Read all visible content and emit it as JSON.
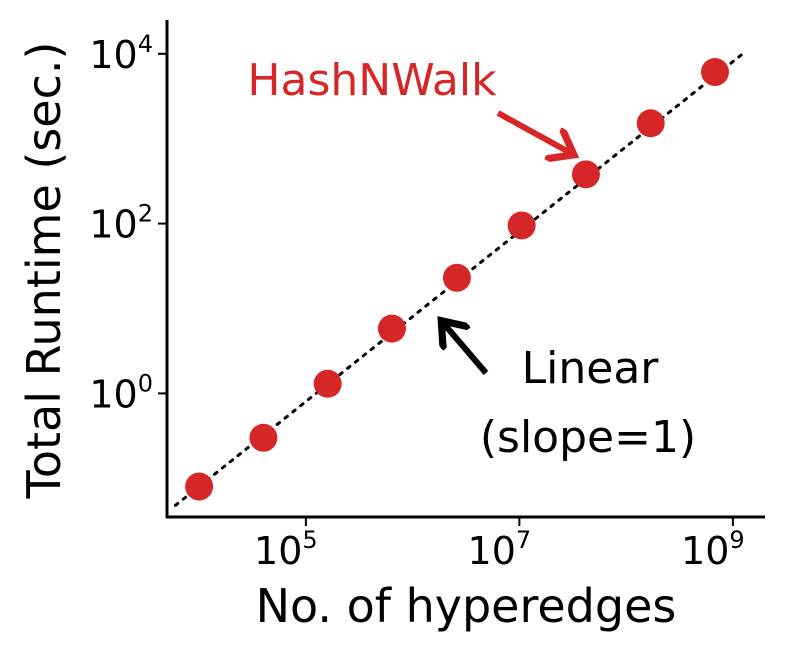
{
  "chart_data": {
    "type": "scatter",
    "title": "",
    "xlabel": "No. of hyperedges",
    "ylabel": "Total Runtime (sec.)",
    "xscale": "log",
    "yscale": "log",
    "xlim": [
      5000,
      2000000000
    ],
    "ylim": [
      0.035,
      25000
    ],
    "x_ticks": [
      {
        "value": 100000,
        "base": "10",
        "exp": "5"
      },
      {
        "value": 10000000,
        "base": "10",
        "exp": "7"
      },
      {
        "value": 1000000000,
        "base": "10",
        "exp": "9"
      }
    ],
    "y_ticks": [
      {
        "value": 1,
        "base": "10",
        "exp": "0"
      },
      {
        "value": 100,
        "base": "10",
        "exp": "2"
      },
      {
        "value": 10000,
        "base": "10",
        "exp": "4"
      }
    ],
    "series": [
      {
        "name": "HashNWalk",
        "color": "#d62728",
        "points": [
          {
            "x": 10000,
            "y": 0.08
          },
          {
            "x": 40000,
            "y": 0.3
          },
          {
            "x": 160000,
            "y": 1.3
          },
          {
            "x": 640000,
            "y": 5.8
          },
          {
            "x": 2600000,
            "y": 23
          },
          {
            "x": 10500000,
            "y": 95
          },
          {
            "x": 42000000,
            "y": 380
          },
          {
            "x": 170000000,
            "y": 1520
          },
          {
            "x": 680000000,
            "y": 6100
          }
        ]
      }
    ],
    "reference_line": {
      "style": "dotted",
      "color": "#000000",
      "slope": 1,
      "points": [
        {
          "x": 6000,
          "y": 0.048
        },
        {
          "x": 1300000000,
          "y": 10500
        }
      ]
    },
    "annotations": [
      {
        "text": "HashNWalk",
        "color": "#d62728",
        "arrow_to": {
          "x": 33000000,
          "y": 600
        }
      },
      {
        "line1": "Linear",
        "line2": "(slope=1)",
        "color": "#000000",
        "arrow_to": {
          "x": 1600000,
          "y": 9
        }
      }
    ],
    "grid": false,
    "legend": "none"
  }
}
